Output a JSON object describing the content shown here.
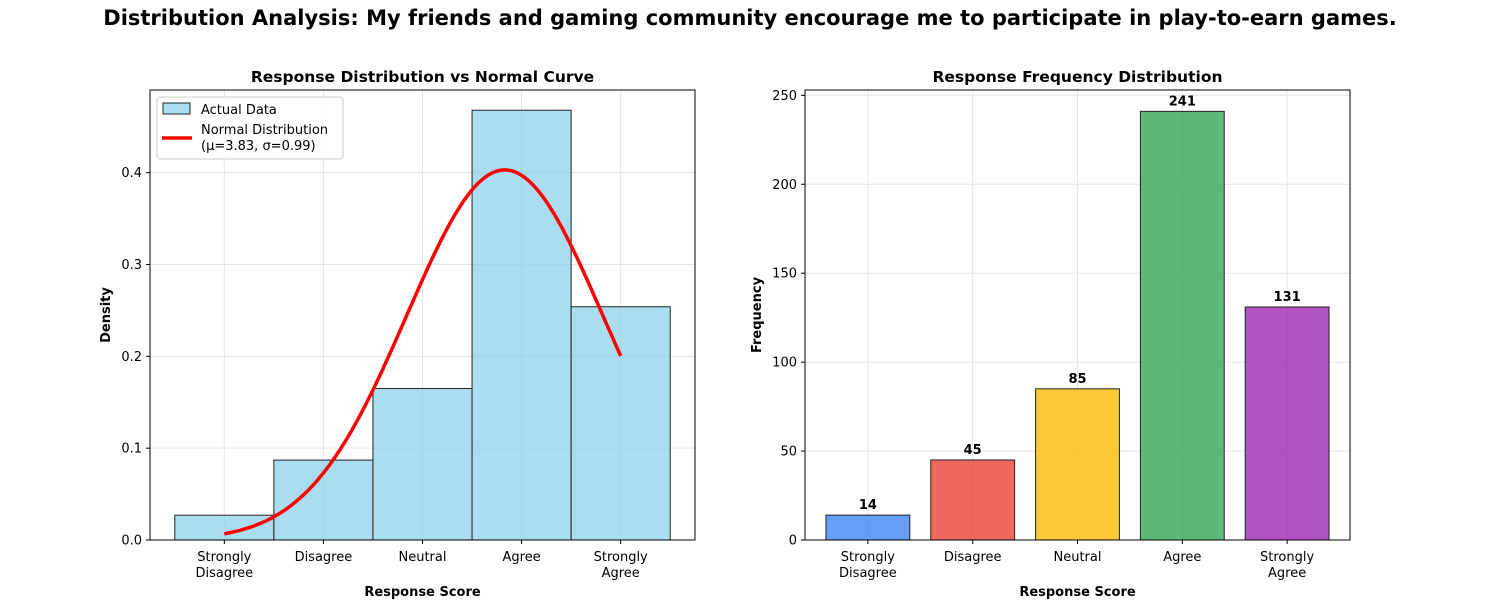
{
  "figure_title": "Distribution Analysis: My friends and gaming community encourage me to participate in play-to-earn games.",
  "chart_data": [
    {
      "type": "bar",
      "title": "Response Distribution vs Normal Curve",
      "xlabel": "Response Score",
      "ylabel": "Density",
      "categories": [
        "Strongly\nDisagree",
        "Disagree",
        "Neutral",
        "Agree",
        "Strongly\nAgree"
      ],
      "x_values": [
        1,
        2,
        3,
        4,
        5
      ],
      "xlim": [
        0.25,
        5.75
      ],
      "ylim": [
        0,
        0.49
      ],
      "yticks": [
        0.0,
        0.1,
        0.2,
        0.3,
        0.4
      ],
      "grid": true,
      "legend_position": "top-left",
      "series": [
        {
          "name": "Actual Data",
          "kind": "histogram",
          "color": "#87CEEB",
          "values": [
            0.027,
            0.087,
            0.165,
            0.468,
            0.254
          ]
        },
        {
          "name": "Normal Distribution\n(μ=3.83, σ=0.99)",
          "kind": "line",
          "color": "#ff0000",
          "mu": 3.83,
          "sigma": 0.99,
          "x_range": [
            1,
            5
          ]
        }
      ]
    },
    {
      "type": "bar",
      "title": "Response Frequency Distribution",
      "xlabel": "Response Score",
      "ylabel": "Frequency",
      "categories": [
        "Strongly\nDisagree",
        "Disagree",
        "Neutral",
        "Agree",
        "Strongly\nAgree"
      ],
      "values": [
        14,
        45,
        85,
        241,
        131
      ],
      "data_labels": [
        "14",
        "45",
        "85",
        "241",
        "131"
      ],
      "colors": [
        "#4285F4",
        "#EA4335",
        "#FBBC04",
        "#34A853",
        "#9C27B0"
      ],
      "xlim": [
        -0.6,
        4.6
      ],
      "ylim": [
        0,
        253
      ],
      "yticks": [
        0,
        50,
        100,
        150,
        200,
        250
      ],
      "grid": true
    }
  ]
}
